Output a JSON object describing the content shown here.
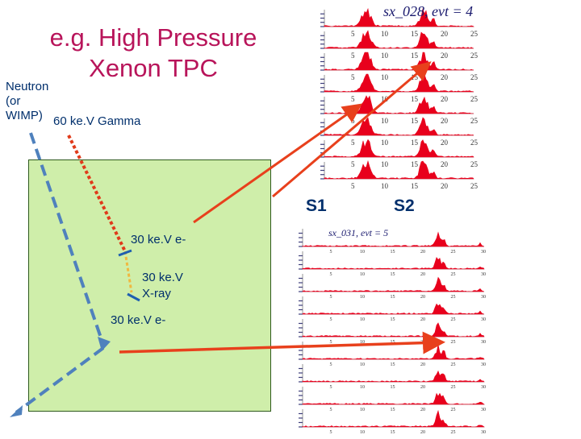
{
  "title": {
    "line1": "e.g. High Pressure",
    "line2": "Xenon TPC"
  },
  "labels": {
    "neutron": [
      "Neutron",
      "(or",
      "WIMP)"
    ],
    "gamma": "60 ke.V Gamma",
    "electron1": "30 ke.V e-",
    "xray_line1": "30 ke.V",
    "xray_line2": "X-ray",
    "electron2": "30 ke.V e-",
    "s1": "S1",
    "s2": "S2"
  },
  "panels": {
    "top": {
      "title": "sx_028,  evt = 4",
      "ticks": [
        "5",
        "10",
        "15",
        "20",
        "25"
      ]
    },
    "bottom": {
      "title": "sx_031,  evt = 5",
      "ticks": [
        "5",
        "10",
        "15",
        "20",
        "25",
        "30"
      ]
    }
  },
  "colors": {
    "title": "#b8145a",
    "label": "#002f6c",
    "detector": "#cfeeaa",
    "neutron_track": "#4f81bd",
    "gamma_track": "#e03a1a",
    "arrows": "#e8401c",
    "peaks": "#e8001c"
  }
}
